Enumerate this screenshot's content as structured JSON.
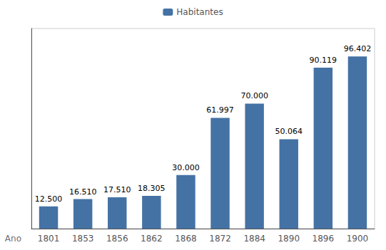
{
  "chart_data": {
    "type": "bar",
    "xlabel": "Ano",
    "categories": [
      "1801",
      "1853",
      "1856",
      "1862",
      "1868",
      "1872",
      "1884",
      "1890",
      "1896",
      "1900"
    ],
    "series": [
      {
        "name": "Habitantes",
        "color": "#4472a4",
        "values": [
          12500,
          16510,
          17510,
          18305,
          30000,
          61997,
          70000,
          50064,
          90119,
          96402
        ],
        "value_labels": [
          "12.500",
          "16.510",
          "17.510",
          "18.305",
          "30.000",
          "61.997",
          "70.000",
          "50.064",
          "90.119",
          "96.402"
        ]
      }
    ],
    "ylim": [
      0,
      112000
    ],
    "data_labels": true,
    "tick_labels": "x",
    "grid": false,
    "legend": "top"
  }
}
